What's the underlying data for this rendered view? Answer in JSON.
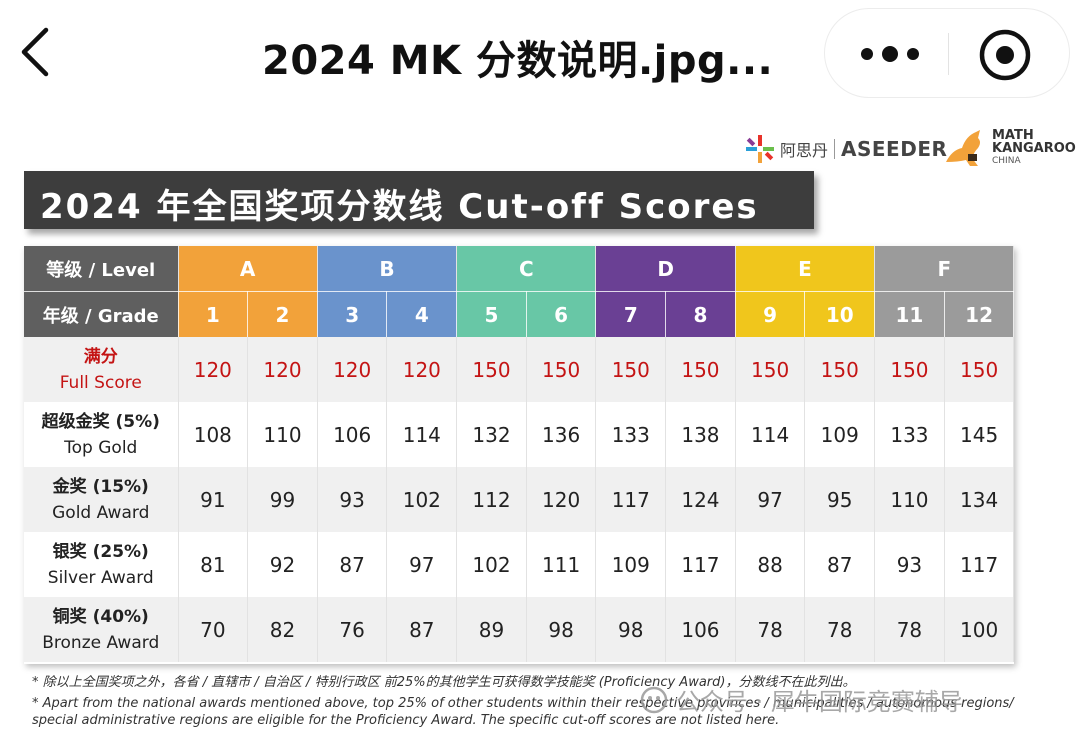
{
  "topbar": {
    "title": "2024 MK 分数说明.jpg...",
    "back_icon": "chevron-left-icon",
    "more_icon": "more-dots-icon",
    "target_icon": "record-target-icon"
  },
  "logos": {
    "aseeder_cn": "阿思丹",
    "aseeder_en": "ASEEDER",
    "mk_line1": "MATH",
    "mk_line2": "KANGAROO",
    "mk_line3": "CHINA"
  },
  "banner": {
    "title": "2024 年全国奖项分数线 Cut-off Scores"
  },
  "table": {
    "level_header": "等级 / Level",
    "grade_header": "年级 / Grade",
    "levels": [
      {
        "label": "A",
        "color": "#f2a23a"
      },
      {
        "label": "B",
        "color": "#6a93cc"
      },
      {
        "label": "C",
        "color": "#68c7a6"
      },
      {
        "label": "D",
        "color": "#6a4094"
      },
      {
        "label": "E",
        "color": "#f0c61c"
      },
      {
        "label": "F",
        "color": "#9b9b9b"
      }
    ],
    "grades": [
      "1",
      "2",
      "3",
      "4",
      "5",
      "6",
      "7",
      "8",
      "9",
      "10",
      "11",
      "12"
    ],
    "rows": [
      {
        "cn": "满分",
        "en": "Full Score",
        "values": [
          "120",
          "120",
          "120",
          "120",
          "150",
          "150",
          "150",
          "150",
          "150",
          "150",
          "150",
          "150"
        ]
      },
      {
        "cn": "超级金奖 (5%)",
        "en": "Top Gold",
        "values": [
          "108",
          "110",
          "106",
          "114",
          "132",
          "136",
          "133",
          "138",
          "114",
          "109",
          "133",
          "145"
        ]
      },
      {
        "cn": "金奖 (15%)",
        "en": "Gold Award",
        "values": [
          "91",
          "99",
          "93",
          "102",
          "112",
          "120",
          "117",
          "124",
          "97",
          "95",
          "110",
          "134"
        ]
      },
      {
        "cn": "银奖 (25%)",
        "en": "Silver Award",
        "values": [
          "81",
          "92",
          "87",
          "97",
          "102",
          "111",
          "109",
          "117",
          "88",
          "87",
          "93",
          "117"
        ]
      },
      {
        "cn": "铜奖 (40%)",
        "en": "Bronze Award",
        "values": [
          "70",
          "82",
          "76",
          "87",
          "89",
          "98",
          "98",
          "106",
          "78",
          "78",
          "78",
          "100"
        ]
      }
    ]
  },
  "notes": {
    "cn": "* 除以上全国奖项之外，各省 / 直辖市 / 自治区 / 特别行政区 前25%的其他学生可获得数学技能奖 (Proficiency Award)，分数线不在此列出。",
    "en1": "* Apart from the national awards mentioned above, top 25% of other students within their respective provinces / municipalities / autonomous regions/",
    "en2": "special administrative regions are eligible for the Proficiency Award. The specific cut-off scores are not listed here."
  },
  "watermark": {
    "text": "公众号 · 犀牛国际竞赛辅导",
    "icon": "wechat-official-account-icon"
  }
}
